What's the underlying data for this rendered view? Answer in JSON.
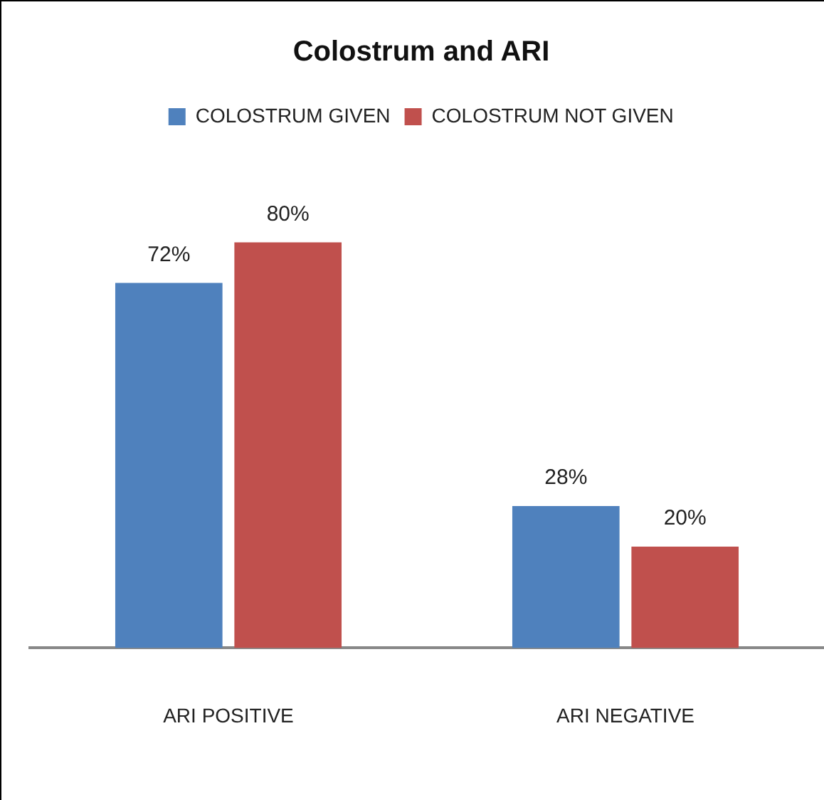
{
  "chart_data": {
    "type": "bar",
    "title": "Colostrum and ARI",
    "categories": [
      "ARI POSITIVE",
      "ARI NEGATIVE"
    ],
    "series": [
      {
        "name": "COLOSTRUM GIVEN",
        "color": "#4f81bd",
        "values": [
          72,
          28
        ],
        "value_labels": [
          "72%",
          "28%"
        ]
      },
      {
        "name": "COLOSTRUM NOT GIVEN",
        "color": "#c0504d",
        "values": [
          80,
          20
        ],
        "value_labels": [
          "80%",
          "20%"
        ]
      }
    ],
    "relative": false,
    "grid": false,
    "legend": "top"
  }
}
